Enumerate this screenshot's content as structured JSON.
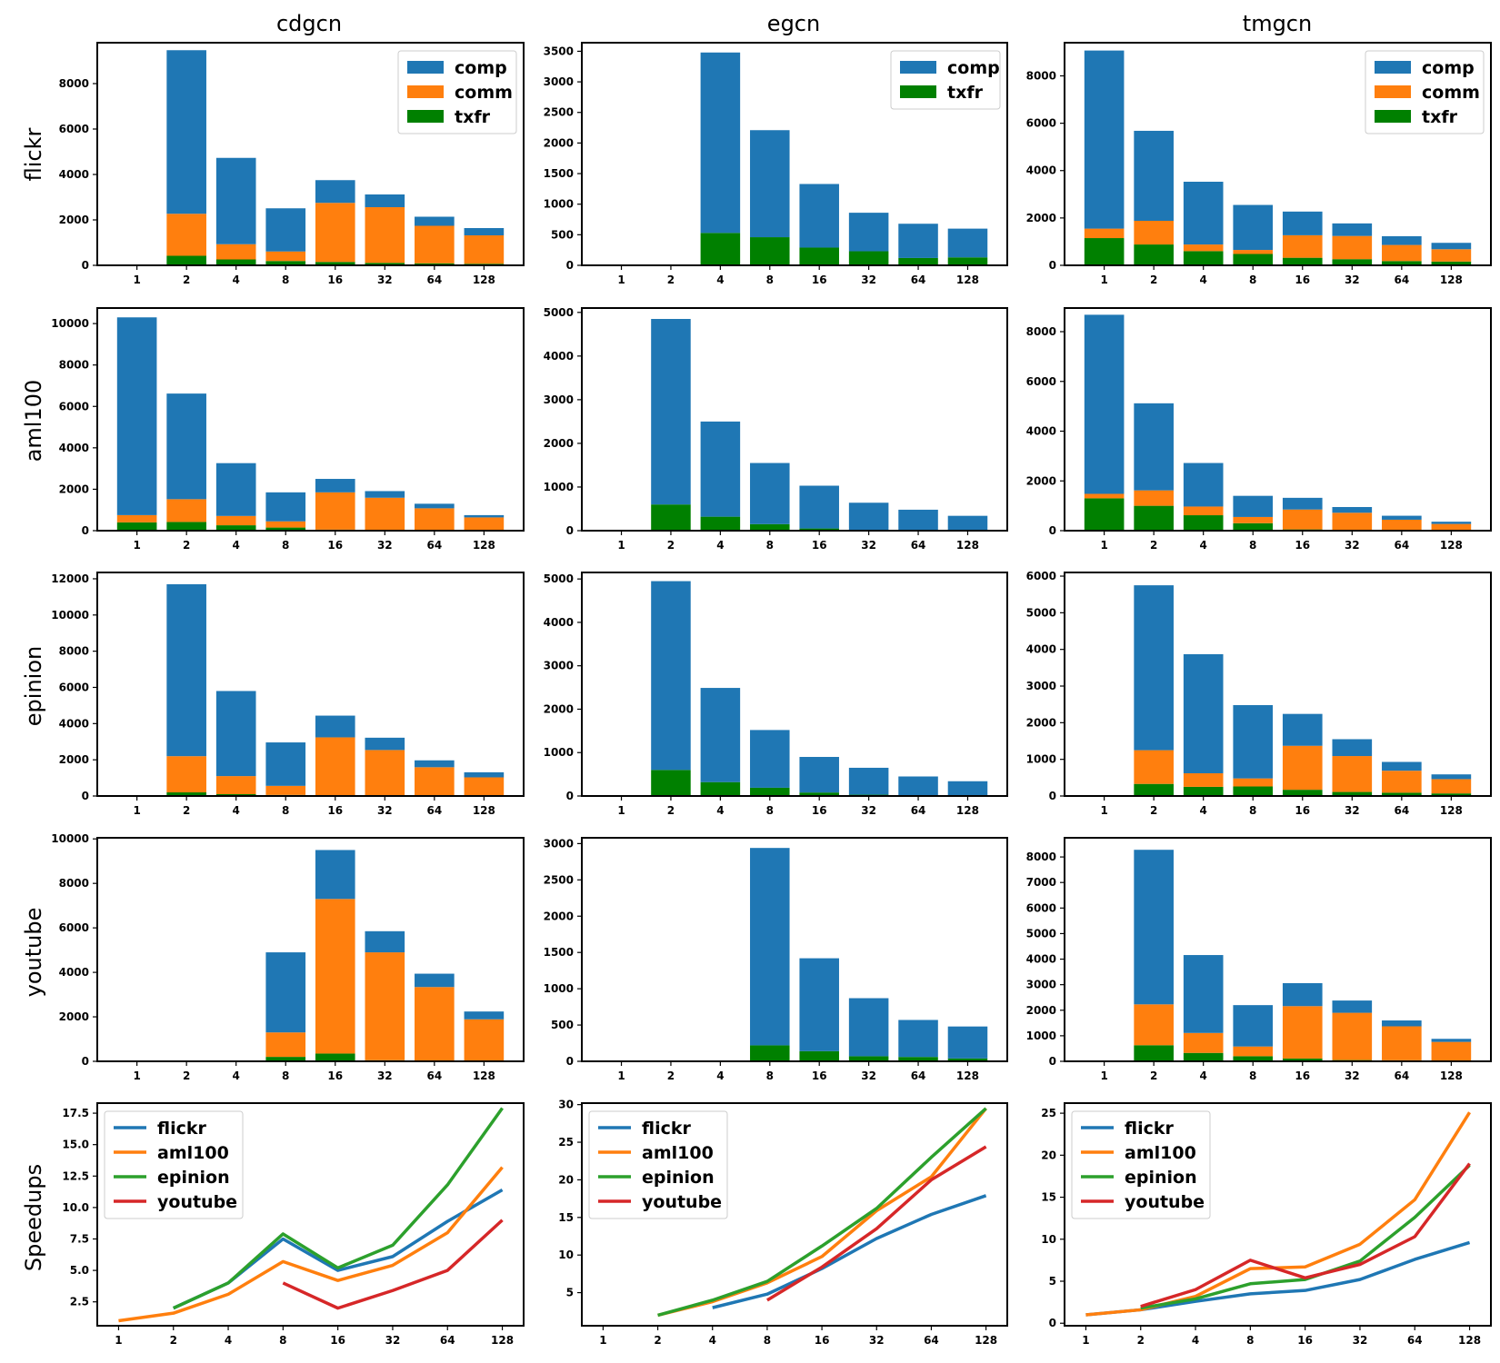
{
  "colors": {
    "comp": "#1f77b4",
    "comm": "#ff7f0e",
    "txfr": "#008000",
    "flickr": "#1f77b4",
    "aml100": "#ff7f0e",
    "epinion": "#2ca02c",
    "youtube": "#d62728"
  },
  "chart_data": {
    "type": "bar",
    "title": "",
    "columns": [
      "cdgcn",
      "egcn",
      "tmgcn"
    ],
    "rows": [
      "flickr",
      "aml100",
      "epinion",
      "youtube"
    ],
    "speedup_ylabel": "Speedups",
    "categories": [
      "1",
      "2",
      "4",
      "8",
      "16",
      "32",
      "64",
      "128"
    ],
    "panels": [
      {
        "row": "flickr",
        "column": "cdgcn",
        "ylim": [
          0,
          9800
        ],
        "yticks": [
          0,
          2000,
          4000,
          6000,
          8000
        ],
        "legend": [
          "comp",
          "comm",
          "txfr"
        ],
        "series": [
          {
            "name": "comp",
            "values": [
              null,
              7200,
              3800,
              1900,
              1000,
              560,
              400,
              320
            ]
          },
          {
            "name": "comm",
            "values": [
              null,
              1850,
              670,
              420,
              2600,
              2450,
              1650,
              1250
            ]
          },
          {
            "name": "txfr",
            "values": [
              null,
              420,
              260,
              190,
              150,
              110,
              90,
              70
            ]
          }
        ]
      },
      {
        "row": "flickr",
        "column": "egcn",
        "ylim": [
          0,
          3640
        ],
        "yticks": [
          0,
          500,
          1000,
          1500,
          2000,
          2500,
          3000,
          3500
        ],
        "legend": [
          "comp",
          "txfr"
        ],
        "series": [
          {
            "name": "comp",
            "values": [
              null,
              null,
              2950,
              1750,
              1040,
              630,
              560,
              470
            ]
          },
          {
            "name": "txfr",
            "values": [
              null,
              null,
              530,
              460,
              290,
              230,
              120,
              130
            ]
          }
        ]
      },
      {
        "row": "flickr",
        "column": "tmgcn",
        "ylim": [
          0,
          9400
        ],
        "yticks": [
          0,
          2000,
          4000,
          6000,
          8000
        ],
        "legend": [
          "comp",
          "comm",
          "txfr"
        ],
        "series": [
          {
            "name": "comp",
            "values": [
              7520,
              3800,
              2650,
              1900,
              1000,
              530,
              370,
              270
            ]
          },
          {
            "name": "comm",
            "values": [
              400,
              1000,
              280,
              170,
              950,
              980,
              680,
              520
            ]
          },
          {
            "name": "txfr",
            "values": [
              1150,
              880,
              600,
              480,
              320,
              260,
              180,
              160
            ]
          }
        ]
      },
      {
        "row": "aml100",
        "column": "cdgcn",
        "ylim": [
          0,
          10750
        ],
        "yticks": [
          0,
          2000,
          4000,
          6000,
          8000,
          10000
        ],
        "legend": [],
        "series": [
          {
            "name": "comp",
            "values": [
              9550,
              5100,
              2550,
              1400,
              650,
              320,
              220,
              110
            ]
          },
          {
            "name": "comm",
            "values": [
              350,
              1100,
              450,
              300,
              1800,
              1550,
              1050,
              620
            ]
          },
          {
            "name": "txfr",
            "values": [
              400,
              420,
              260,
              150,
              50,
              40,
              30,
              20
            ]
          }
        ]
      },
      {
        "row": "aml100",
        "column": "egcn",
        "ylim": [
          0,
          5100
        ],
        "yticks": [
          0,
          1000,
          2000,
          3000,
          4000,
          5000
        ],
        "legend": [],
        "series": [
          {
            "name": "comp",
            "values": [
              null,
              4250,
              2180,
              1400,
              980,
              620,
              460,
              320
            ]
          },
          {
            "name": "txfr",
            "values": [
              null,
              600,
              320,
              150,
              50,
              20,
              20,
              20
            ]
          }
        ]
      },
      {
        "row": "aml100",
        "column": "tmgcn",
        "ylim": [
          0,
          8950
        ],
        "yticks": [
          0,
          2000,
          4000,
          6000,
          8000
        ],
        "legend": [],
        "series": [
          {
            "name": "comp",
            "values": [
              7200,
              3500,
              1750,
              850,
              470,
              230,
              160,
              90
            ]
          },
          {
            "name": "comm",
            "values": [
              180,
              620,
              350,
              250,
              800,
              700,
              430,
              260
            ]
          },
          {
            "name": "txfr",
            "values": [
              1300,
              1000,
              620,
              300,
              50,
              20,
              10,
              10
            ]
          }
        ]
      },
      {
        "row": "epinion",
        "column": "cdgcn",
        "ylim": [
          0,
          12350
        ],
        "yticks": [
          0,
          2000,
          4000,
          6000,
          8000,
          10000,
          12000
        ],
        "legend": [],
        "series": [
          {
            "name": "comp",
            "values": [
              null,
              9500,
              4700,
              2400,
              1200,
              680,
              380,
              280
            ]
          },
          {
            "name": "comm",
            "values": [
              null,
              2000,
              1000,
              500,
              3200,
              2500,
              1550,
              1000
            ]
          },
          {
            "name": "txfr",
            "values": [
              null,
              200,
              100,
              60,
              40,
              40,
              40,
              30
            ]
          }
        ]
      },
      {
        "row": "epinion",
        "column": "egcn",
        "ylim": [
          0,
          5150
        ],
        "yticks": [
          0,
          1000,
          2000,
          3000,
          4000,
          5000
        ],
        "legend": [],
        "series": [
          {
            "name": "comp",
            "values": [
              null,
              4350,
              2170,
              1330,
              820,
              620,
              430,
              320
            ]
          },
          {
            "name": "txfr",
            "values": [
              null,
              600,
              320,
              190,
              80,
              30,
              20,
              20
            ]
          }
        ]
      },
      {
        "row": "epinion",
        "column": "tmgcn",
        "ylim": [
          0,
          6100
        ],
        "yticks": [
          0,
          1000,
          2000,
          3000,
          4000,
          5000,
          6000
        ],
        "legend": [],
        "series": [
          {
            "name": "comp",
            "values": [
              null,
              4500,
              3250,
              2000,
              870,
              460,
              240,
              130
            ]
          },
          {
            "name": "comm",
            "values": [
              null,
              920,
              370,
              220,
              1200,
              980,
              600,
              390
            ]
          },
          {
            "name": "txfr",
            "values": [
              null,
              330,
              250,
              260,
              170,
              110,
              90,
              70
            ]
          }
        ]
      },
      {
        "row": "youtube",
        "column": "cdgcn",
        "ylim": [
          0,
          10050
        ],
        "yticks": [
          0,
          2000,
          4000,
          6000,
          8000,
          10000
        ],
        "legend": [],
        "series": [
          {
            "name": "comp",
            "values": [
              null,
              null,
              null,
              3600,
              2200,
              950,
              600,
              350
            ]
          },
          {
            "name": "comm",
            "values": [
              null,
              null,
              null,
              1100,
              6950,
              4850,
              3300,
              1850
            ]
          },
          {
            "name": "txfr",
            "values": [
              null,
              null,
              null,
              200,
              350,
              50,
              40,
              40
            ]
          }
        ]
      },
      {
        "row": "youtube",
        "column": "egcn",
        "ylim": [
          0,
          3080
        ],
        "yticks": [
          0,
          500,
          1000,
          1500,
          2000,
          2500,
          3000
        ],
        "legend": [],
        "series": [
          {
            "name": "comp",
            "values": [
              null,
              null,
              null,
              2720,
              1280,
              800,
              510,
              440
            ]
          },
          {
            "name": "txfr",
            "values": [
              null,
              null,
              null,
              220,
              140,
              70,
              60,
              40
            ]
          }
        ]
      },
      {
        "row": "youtube",
        "column": "tmgcn",
        "ylim": [
          0,
          8750
        ],
        "yticks": [
          0,
          1000,
          2000,
          3000,
          4000,
          5000,
          6000,
          7000,
          8000
        ],
        "legend": [],
        "series": [
          {
            "name": "comp",
            "values": [
              null,
              6050,
              3050,
              1620,
              900,
              480,
              230,
              120
            ]
          },
          {
            "name": "comm",
            "values": [
              null,
              1600,
              780,
              380,
              2050,
              1850,
              1330,
              730
            ]
          },
          {
            "name": "txfr",
            "values": [
              null,
              630,
              330,
              200,
              110,
              50,
              40,
              30
            ]
          }
        ]
      }
    ],
    "speedups": [
      {
        "column": "cdgcn",
        "type": "line",
        "ylim": [
          0.6,
          18.3
        ],
        "yticks": [
          "2.5",
          "5.0",
          "7.5",
          "10.0",
          "12.5",
          "15.0",
          "17.5"
        ],
        "legend": [
          "flickr",
          "aml100",
          "epinion",
          "youtube"
        ],
        "series": [
          {
            "name": "flickr",
            "values": [
              null,
              2.0,
              4.0,
              7.5,
              5.0,
              6.1,
              8.9,
              11.4
            ]
          },
          {
            "name": "aml100",
            "values": [
              1.0,
              1.6,
              3.1,
              5.7,
              4.2,
              5.4,
              8.0,
              13.2
            ]
          },
          {
            "name": "epinion",
            "values": [
              null,
              2.0,
              4.0,
              7.9,
              5.2,
              7.0,
              11.8,
              17.9
            ]
          },
          {
            "name": "youtube",
            "values": [
              null,
              null,
              null,
              4.0,
              2.0,
              3.4,
              5.0,
              9.0
            ]
          }
        ]
      },
      {
        "column": "egcn",
        "type": "line",
        "ylim": [
          0.6,
          30.2
        ],
        "yticks": [
          "5",
          "10",
          "15",
          "20",
          "25",
          "30"
        ],
        "legend": [
          "flickr",
          "aml100",
          "epinion",
          "youtube"
        ],
        "series": [
          {
            "name": "flickr",
            "values": [
              null,
              null,
              3.0,
              4.8,
              8.2,
              12.2,
              15.4,
              17.9
            ]
          },
          {
            "name": "aml100",
            "values": [
              null,
              2.0,
              3.8,
              6.3,
              9.8,
              15.9,
              20.4,
              29.5
            ]
          },
          {
            "name": "epinion",
            "values": [
              null,
              2.0,
              4.0,
              6.5,
              11.2,
              16.2,
              23.0,
              29.5
            ]
          },
          {
            "name": "youtube",
            "values": [
              null,
              null,
              null,
              4.0,
              8.4,
              13.5,
              20.0,
              24.4
            ]
          }
        ]
      },
      {
        "column": "tmgcn",
        "type": "line",
        "ylim": [
          -0.3,
          26.2
        ],
        "yticks": [
          "0",
          "5",
          "10",
          "15",
          "20",
          "25"
        ],
        "legend": [
          "flickr",
          "aml100",
          "epinion",
          "youtube"
        ],
        "series": [
          {
            "name": "flickr",
            "values": [
              1.0,
              1.6,
              2.6,
              3.5,
              3.9,
              5.2,
              7.6,
              9.6
            ]
          },
          {
            "name": "aml100",
            "values": [
              1.0,
              1.6,
              3.2,
              6.5,
              6.7,
              9.4,
              14.7,
              25.1
            ]
          },
          {
            "name": "epinion",
            "values": [
              null,
              1.8,
              2.9,
              4.7,
              5.2,
              7.4,
              12.6,
              18.8
            ]
          },
          {
            "name": "youtube",
            "values": [
              null,
              2.0,
              4.0,
              7.5,
              5.4,
              7.0,
              10.3,
              19.0
            ]
          }
        ]
      }
    ]
  }
}
